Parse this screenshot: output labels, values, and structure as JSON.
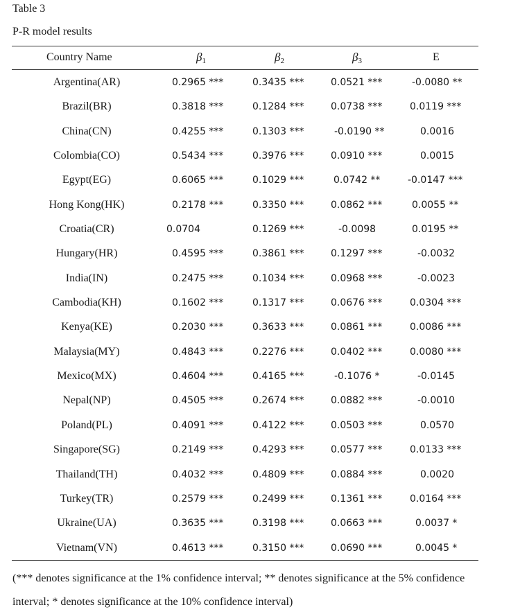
{
  "table": {
    "label": "Table 3",
    "title": "P-R model results",
    "headers": {
      "country": "Country Name",
      "b1_symbol": "β",
      "b1_sub": "1",
      "b2_symbol": "β",
      "b2_sub": "2",
      "b3_symbol": "β",
      "b3_sub": "3",
      "e": "E"
    },
    "rows": [
      {
        "country": "Argentina(AR)",
        "b1": "0.2965  ***",
        "b2": "0.3435 ***",
        "b3": "0.0521 ***",
        "e": "-0.0080 **"
      },
      {
        "country": "Brazil(BR)",
        "b1": "0.3818 ***",
        "b2": "0.1284 ***",
        "b3": "0.0738 ***",
        "e": "0.0119 ***"
      },
      {
        "country": "China(CN)",
        "b1": "0.4255 ***",
        "b2": "0.1303 ***",
        "b3": "-0.0190 **",
        "e": "0.0016"
      },
      {
        "country": "Colombia(CO)",
        "b1": "0.5434 ***",
        "b2": "0.3976 ***",
        "b3": "0.0910 ***",
        "e": "0.0015"
      },
      {
        "country": "Egypt(EG)",
        "b1": "0.6065 ***",
        "b2": "0.1029 ***",
        "b3": "0.0742 **",
        "e": "-0.0147 ***"
      },
      {
        "country": "Hong Kong(HK)",
        "b1": "0.2178 ***",
        "b2": "0.3350 ***",
        "b3": "0.0862 ***",
        "e": "0.0055 **"
      },
      {
        "country": "Croatia(CR)",
        "b1": "0.0704",
        "b2": "0.1269 ***",
        "b3": "-0.0098",
        "e": "0.0195 **"
      },
      {
        "country": "Hungary(HR)",
        "b1": "0.4595 ***",
        "b2": "0.3861 ***",
        "b3": "0.1297 ***",
        "e": "-0.0032"
      },
      {
        "country": "India(IN)",
        "b1": "0.2475 ***",
        "b2": "0.1034 ***",
        "b3": "0.0968 ***",
        "e": "-0.0023"
      },
      {
        "country": "Cambodia(KH)",
        "b1": "0.1602 ***",
        "b2": "0.1317 ***",
        "b3": "0.0676 ***",
        "e": "0.0304 ***"
      },
      {
        "country": "Kenya(KE)",
        "b1": "0.2030 ***",
        "b2": "0.3633 ***",
        "b3": "0.0861 ***",
        "e": "0.0086 ***"
      },
      {
        "country": "Malaysia(MY)",
        "b1": "0.4843 ***",
        "b2": "0.2276 ***",
        "b3": "0.0402 ***",
        "e": "0.0080 ***"
      },
      {
        "country": "Mexico(MX)",
        "b1": "0.4604 ***",
        "b2": "0.4165 ***",
        "b3": "-0.1076 *",
        "e": "-0.0145"
      },
      {
        "country": "Nepal(NP)",
        "b1": "0.4505 ***",
        "b2": "0.2674 ***",
        "b3": "0.0882 ***",
        "e": "-0.0010"
      },
      {
        "country": "Poland(PL)",
        "b1": "0.4091 ***",
        "b2": "0.4122 ***",
        "b3": "0.0503 ***",
        "e": "0.0570"
      },
      {
        "country": "Singapore(SG)",
        "b1": "0.2149 ***",
        "b2": "0.4293 ***",
        "b3": "0.0577 ***",
        "e": "0.0133 ***"
      },
      {
        "country": "Thailand(TH)",
        "b1": "0.4032 ***",
        "b2": "0.4809 ***",
        "b3": "0.0884 ***",
        "e": "0.0020"
      },
      {
        "country": "Turkey(TR)",
        "b1": "0.2579 ***",
        "b2": "0.2499 ***",
        "b3": "0.1361 ***",
        "e": "0.0164 ***"
      },
      {
        "country": "Ukraine(UA)",
        "b1": "0.3635 ***",
        "b2": "0.3198 ***",
        "b3": "0.0663 ***",
        "e": "0.0037 *"
      },
      {
        "country": "Vietnam(VN)",
        "b1": "0.4613 ***",
        "b2": "0.3150 ***",
        "b3": "0.0690 ***",
        "e": "0.0045 *"
      }
    ],
    "note": "(*** denotes significance at the 1% confidence interval; ** denotes significance at the 5% confidence interval; * denotes significance at the 10% confidence interval)"
  }
}
